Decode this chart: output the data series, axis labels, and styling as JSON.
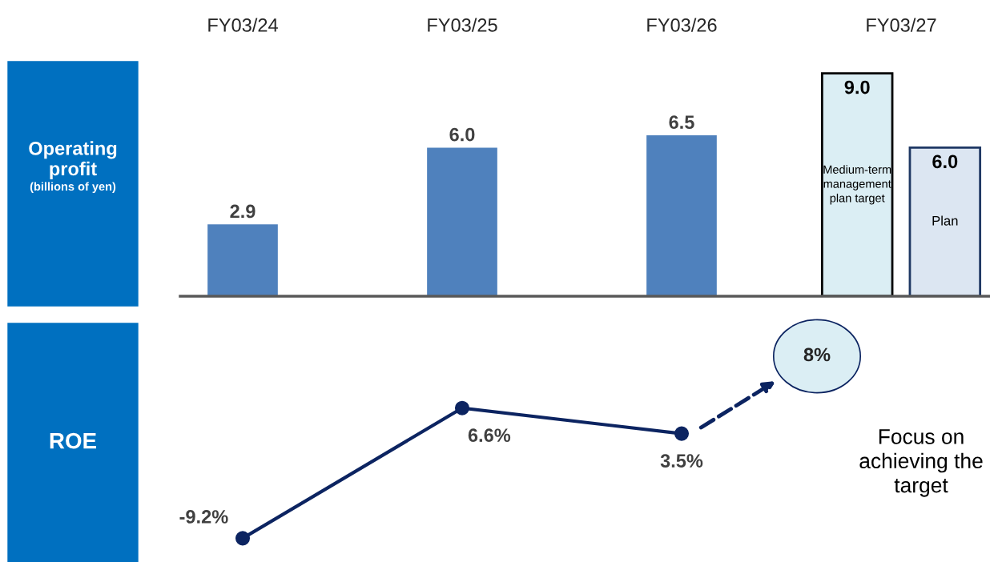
{
  "chart_data": [
    {
      "type": "bar",
      "ylabel": "Operating\nprofit\n(billions of yen)",
      "categories": [
        "FY03/24",
        "FY03/25",
        "FY03/26",
        "FY03/27"
      ],
      "grid": false,
      "legend": false,
      "tick_labels": "x",
      "series": [
        {
          "color": "#4f81bd",
          "values": [
            2.9,
            6.0,
            6.5,
            null
          ],
          "value_labels": [
            "2.9",
            "6.0",
            "6.5",
            null
          ]
        },
        {
          "name": "Medium-term\nmanagement\nplan target",
          "color": "#dbeef4",
          "values": [
            null,
            null,
            null,
            9.0
          ],
          "value_labels": [
            null,
            null,
            null,
            "9.0"
          ]
        },
        {
          "name": "Plan",
          "color": "#dce6f2",
          "values": [
            null,
            null,
            null,
            6.0
          ],
          "value_labels": [
            null,
            null,
            null,
            "6.0"
          ]
        }
      ]
    },
    {
      "type": "line",
      "ylabel": "ROE",
      "categories": [
        null,
        null,
        null,
        null
      ],
      "tick_labels": false,
      "grid": false,
      "legend": false,
      "marker": "circle",
      "line_style": "solid",
      "series": [
        {
          "color": "#0c2461",
          "values": [
            -9.2,
            6.6,
            3.5,
            null
          ],
          "value_labels": [
            "-9.2%",
            "6.6%",
            "3.5%",
            null
          ]
        }
      ],
      "annotations": [
        "8%",
        "Focus on\nachieving the\ntarget"
      ]
    }
  ]
}
